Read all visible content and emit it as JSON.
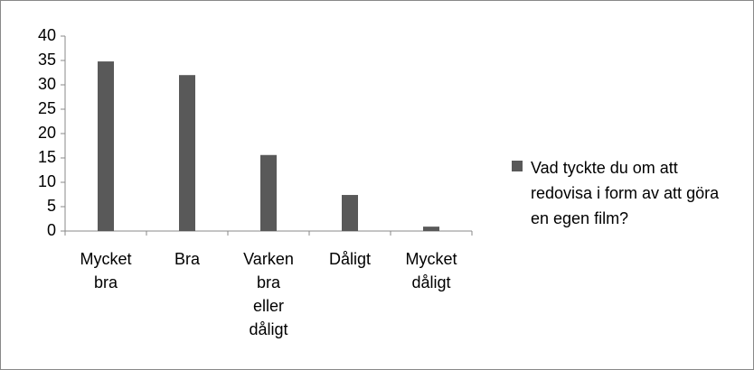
{
  "chart_data": {
    "type": "bar",
    "categories": [
      "Mycket bra",
      "Bra",
      "Varken bra eller dåligt",
      "Dåligt",
      "Mycket dåligt"
    ],
    "series": [
      {
        "name": "Vad tyckte du om att redovisa i form av att göra en egen film?",
        "color": "#595959",
        "values": [
          34.8,
          32,
          15.6,
          7.4,
          0.9
        ]
      }
    ],
    "ylim": [
      0,
      40
    ],
    "yticks": [
      0,
      5,
      10,
      15,
      20,
      25,
      30,
      35,
      40
    ],
    "grid": false,
    "legend": "right"
  }
}
